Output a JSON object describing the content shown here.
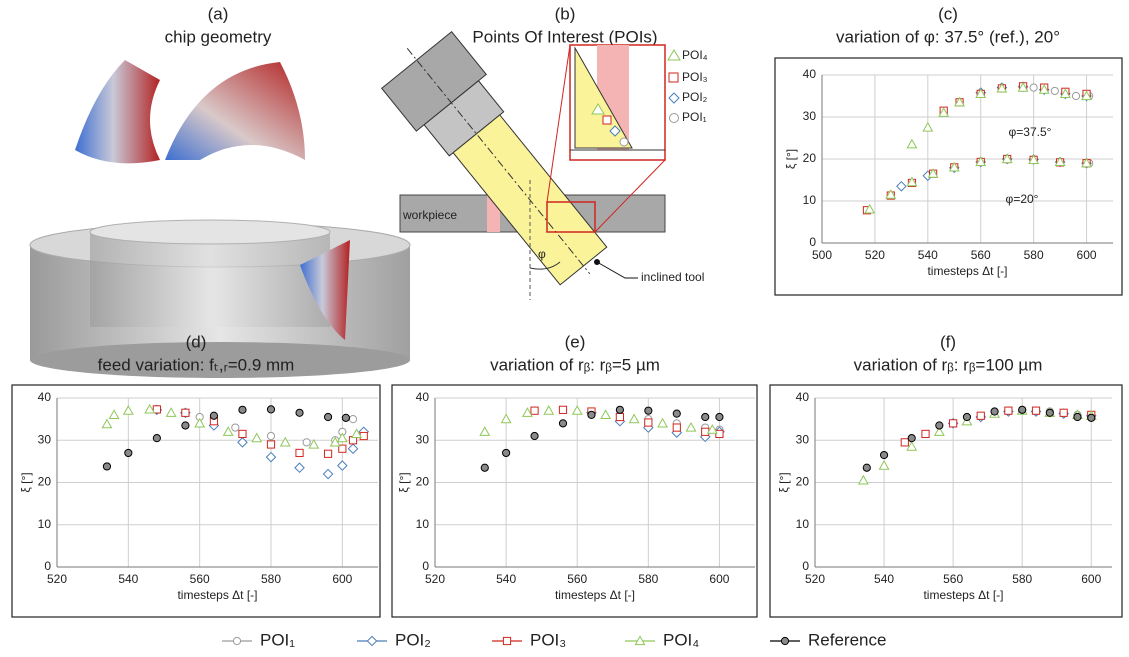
{
  "panels": {
    "a": {
      "label": "(a)",
      "title": "chip geometry"
    },
    "b": {
      "label": "(b)",
      "title": "Points Of Interest (POIs)",
      "workpiece": "workpiece",
      "tool": "inclined tool",
      "angle": "φ",
      "markers": [
        "POI₄",
        "POI₃",
        "POI₂",
        "POI₁"
      ]
    }
  },
  "chart_data": [
    {
      "type": "scatter",
      "label": "(c)",
      "title": "variation of φ: 37.5° (ref.), 20°",
      "xlabel": "timesteps Δt [-]",
      "ylabel": "ξ [°]",
      "xlim": [
        500,
        610
      ],
      "ylim": [
        0,
        40
      ],
      "xticks": [
        500,
        520,
        540,
        560,
        580,
        600
      ],
      "yticks": [
        0,
        10,
        20,
        30,
        40
      ],
      "grid": true,
      "annotations": [
        "φ=37.5°",
        "φ=20°"
      ],
      "series": [
        {
          "color": "#9a9a9a",
          "marker": "circle",
          "x": [
            580,
            588,
            596,
            601
          ],
          "values": [
            37,
            36.2,
            35,
            35
          ]
        },
        {
          "color": "#4a7ebb",
          "marker": "diamond",
          "x": [
            560,
            568,
            576,
            584,
            592,
            600
          ],
          "values": [
            35.8,
            37,
            37.2,
            36.5,
            35.5,
            35
          ]
        },
        {
          "color": "#d0261f",
          "marker": "square",
          "x": [
            546,
            552,
            560,
            568,
            576,
            584,
            592,
            600
          ],
          "values": [
            31.5,
            33.5,
            35.5,
            36.8,
            37.3,
            37,
            36,
            35.5
          ]
        },
        {
          "color": "#8fc75a",
          "marker": "triangle",
          "x": [
            534,
            540,
            546,
            552,
            560,
            568,
            576,
            584,
            592,
            600
          ],
          "values": [
            23.5,
            27.5,
            31,
            33.5,
            35.5,
            36.8,
            37,
            36.5,
            35.5,
            35
          ]
        },
        {
          "color": "#9a9a9a",
          "marker": "circle",
          "x": [
            560,
            570,
            580,
            590,
            601
          ],
          "values": [
            19.2,
            19.9,
            19.8,
            19.2,
            19
          ]
        },
        {
          "color": "#4a7ebb",
          "marker": "diamond",
          "x": [
            530,
            540,
            550,
            560,
            570,
            580,
            590,
            600
          ],
          "values": [
            13.5,
            16,
            17.9,
            19.3,
            20,
            19.9,
            19.3,
            19
          ]
        },
        {
          "color": "#d0261f",
          "marker": "square",
          "x": [
            517,
            526,
            534,
            542,
            550,
            560,
            570,
            580,
            590,
            600
          ],
          "values": [
            7.8,
            11.3,
            14.3,
            16.5,
            18,
            19.3,
            20,
            19.8,
            19.2,
            19
          ]
        },
        {
          "color": "#8fc75a",
          "marker": "triangle",
          "x": [
            518,
            526,
            534,
            542,
            550,
            560,
            570,
            580,
            590,
            600
          ],
          "values": [
            8,
            11.5,
            14.5,
            16.5,
            18,
            19.3,
            20,
            19.8,
            19.3,
            19
          ]
        }
      ]
    },
    {
      "type": "scatter",
      "label": "(d)",
      "title": "feed variation: fₜ,ᵣ=0.9 mm",
      "xlabel": "timesteps Δt [-]",
      "ylabel": "ξ [°]",
      "xlim": [
        520,
        610
      ],
      "ylim": [
        0,
        40
      ],
      "xticks": [
        520,
        540,
        560,
        580,
        600
      ],
      "yticks": [
        0,
        10,
        20,
        30,
        40
      ],
      "grid": true,
      "series": [
        {
          "name": "POI₁",
          "color": "#9a9a9a",
          "marker": "circle",
          "x": [
            560,
            570,
            580,
            590,
            598,
            600,
            603
          ],
          "values": [
            35.5,
            33,
            31,
            29.5,
            30,
            32,
            35
          ]
        },
        {
          "name": "POI₂",
          "color": "#4a7ebb",
          "marker": "diamond",
          "x": [
            548,
            556,
            564,
            572,
            580,
            588,
            596,
            600,
            603,
            606
          ],
          "values": [
            37.2,
            36.5,
            33.5,
            29.5,
            26,
            23.5,
            22,
            24,
            28,
            32
          ]
        },
        {
          "name": "POI₃",
          "color": "#d0261f",
          "marker": "square",
          "x": [
            548,
            556,
            564,
            572,
            580,
            588,
            596,
            600,
            603,
            606
          ],
          "values": [
            37.3,
            36.5,
            34.5,
            31.5,
            29,
            27,
            26.8,
            28,
            30,
            31
          ]
        },
        {
          "name": "POI₄",
          "color": "#8fc75a",
          "marker": "triangle",
          "x": [
            534,
            536,
            540,
            546,
            552,
            560,
            568,
            576,
            584,
            592,
            598,
            600,
            604
          ],
          "values": [
            33.8,
            36,
            37,
            37.3,
            36.5,
            34,
            32,
            30.5,
            29.5,
            29,
            29.5,
            30.5,
            31.5
          ]
        },
        {
          "name": "Reference",
          "color": "#000000",
          "fill": "#8a8a8a",
          "marker": "circle",
          "x": [
            534,
            540,
            548,
            556,
            564,
            572,
            580,
            588,
            596,
            601
          ],
          "values": [
            23.8,
            27,
            30.5,
            33.5,
            35.8,
            37.2,
            37.3,
            36.5,
            35.5,
            35.3
          ]
        }
      ]
    },
    {
      "type": "scatter",
      "label": "(e)",
      "title": "variation of rᵦ: rᵦ=5 µm",
      "xlabel": "timesteps Δt [-]",
      "ylabel": "ξ [°]",
      "xlim": [
        520,
        610
      ],
      "ylim": [
        0,
        40
      ],
      "xticks": [
        520,
        540,
        560,
        580,
        600
      ],
      "yticks": [
        0,
        10,
        20,
        30,
        40
      ],
      "grid": true,
      "series": [
        {
          "color": "#9a9a9a",
          "marker": "circle",
          "x": [
            580,
            588,
            596,
            600
          ],
          "values": [
            35,
            34,
            33,
            32.5
          ]
        },
        {
          "color": "#4a7ebb",
          "marker": "diamond",
          "x": [
            564,
            572,
            580,
            588,
            596,
            600
          ],
          "values": [
            36.5,
            34.5,
            33,
            31.8,
            30.8,
            32
          ]
        },
        {
          "color": "#d0261f",
          "marker": "square",
          "x": [
            548,
            556,
            564,
            572,
            580,
            588,
            596,
            600
          ],
          "values": [
            37,
            37.2,
            36.8,
            35.5,
            34.2,
            33,
            32,
            31.5
          ]
        },
        {
          "color": "#8fc75a",
          "marker": "triangle",
          "x": [
            534,
            540,
            546,
            552,
            560,
            568,
            576,
            584,
            592,
            598
          ],
          "values": [
            32,
            35,
            36.5,
            37,
            37,
            36,
            35,
            34,
            33,
            32.5
          ]
        },
        {
          "color": "#000000",
          "fill": "#8a8a8a",
          "marker": "circle",
          "x": [
            534,
            540,
            548,
            556,
            564,
            572,
            580,
            588,
            596,
            600
          ],
          "values": [
            23.5,
            27,
            31,
            34,
            36,
            37.2,
            37,
            36.3,
            35.5,
            35.5
          ]
        }
      ]
    },
    {
      "type": "scatter",
      "label": "(f)",
      "title": "variation of rᵦ: rᵦ=100 µm",
      "xlabel": "timesteps Δt [-]",
      "ylabel": "ξ [°]",
      "xlim": [
        520,
        606
      ],
      "ylim": [
        0,
        40
      ],
      "xticks": [
        520,
        540,
        560,
        580,
        600
      ],
      "yticks": [
        0,
        10,
        20,
        30,
        40
      ],
      "grid": true,
      "series": [
        {
          "color": "#9a9a9a",
          "marker": "circle",
          "x": [
            580,
            588,
            596,
            600
          ],
          "values": [
            37,
            36.8,
            36,
            35.5
          ]
        },
        {
          "color": "#4a7ebb",
          "marker": "diamond",
          "x": [
            560,
            568,
            576,
            584,
            592,
            600
          ],
          "values": [
            34,
            35.5,
            36.8,
            36.8,
            36.3,
            35.8
          ]
        },
        {
          "color": "#d0261f",
          "marker": "square",
          "x": [
            546,
            552,
            560,
            568,
            576,
            584,
            592,
            600
          ],
          "values": [
            29.5,
            31.5,
            34,
            35.8,
            37,
            37,
            36.5,
            36
          ]
        },
        {
          "color": "#8fc75a",
          "marker": "triangle",
          "x": [
            534,
            540,
            548,
            556,
            564,
            572,
            580,
            588,
            596,
            600
          ],
          "values": [
            20.5,
            24,
            28.5,
            32,
            34.5,
            36.3,
            37,
            36.5,
            36,
            35.8
          ]
        },
        {
          "color": "#000000",
          "fill": "#8a8a8a",
          "marker": "circle",
          "x": [
            535,
            540,
            548,
            556,
            564,
            572,
            580,
            588,
            596,
            600
          ],
          "values": [
            23.5,
            26.5,
            30.5,
            33.5,
            35.5,
            36.8,
            37.2,
            36.5,
            35.5,
            35.3
          ]
        }
      ]
    }
  ]
}
